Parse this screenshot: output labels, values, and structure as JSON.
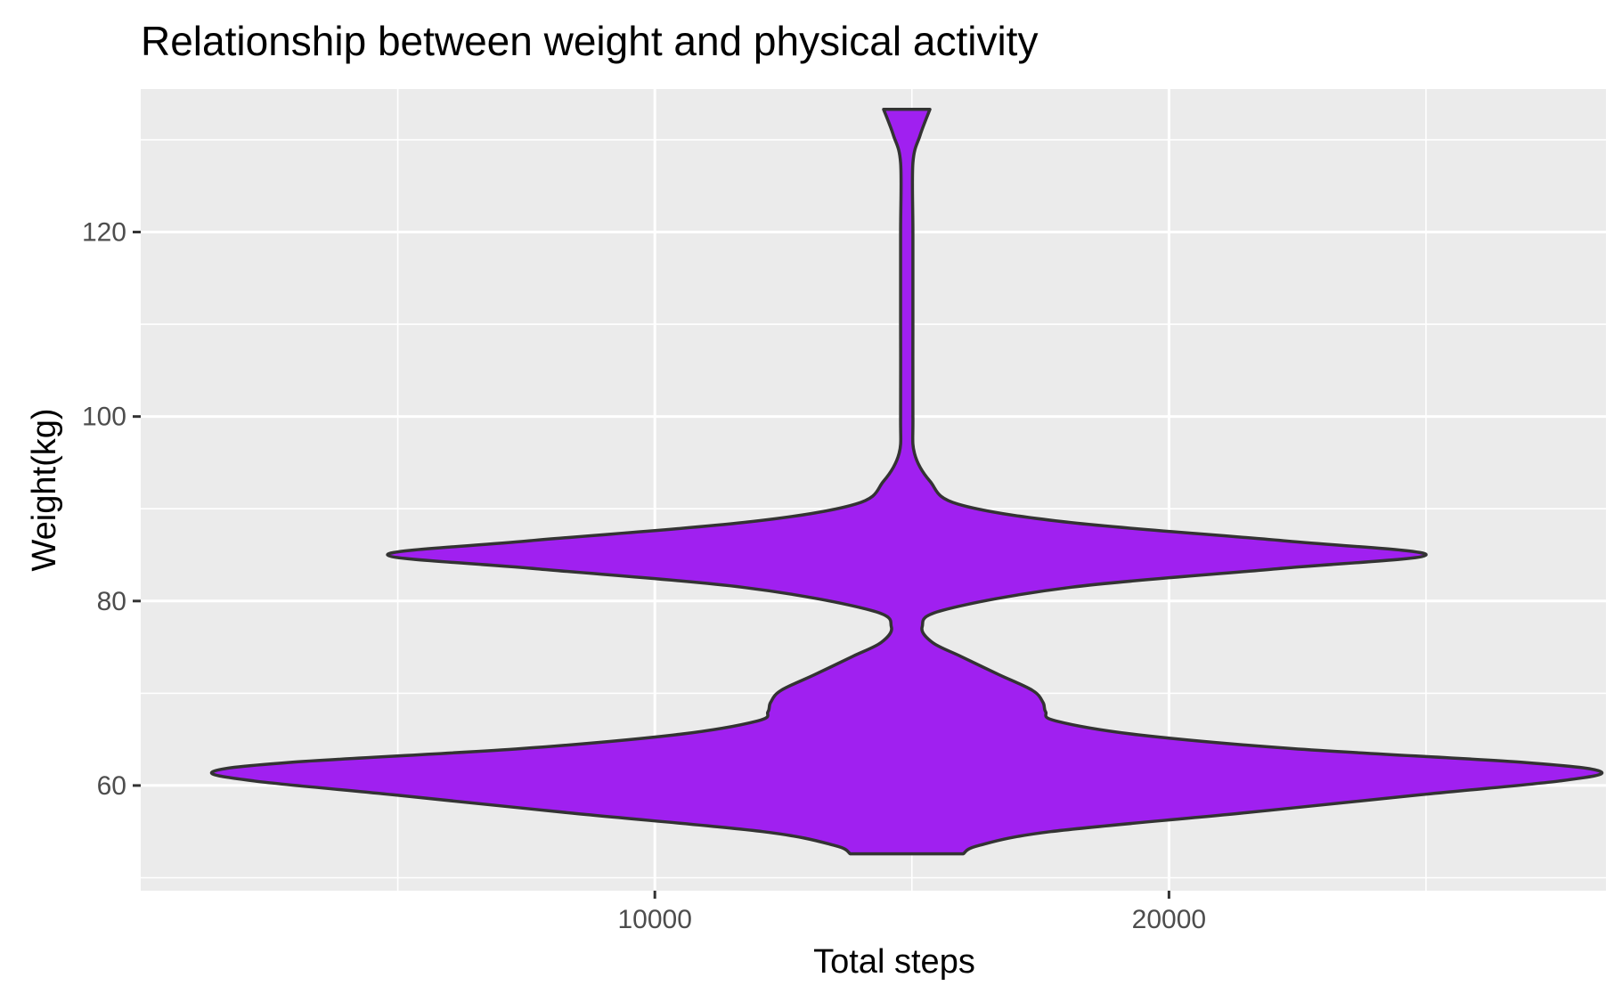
{
  "chart_data": {
    "type": "violin",
    "title": "Relationship between weight and physical activity",
    "xlabel": "Total steps",
    "ylabel": "Weight(kg)",
    "xlim": [
      0,
      28500
    ],
    "ylim": [
      48.6,
      135.5
    ],
    "x_major_ticks": [
      10000,
      20000
    ],
    "x_minor_ticks": [
      5000,
      15000,
      25000
    ],
    "y_major_ticks": [
      60,
      80,
      100,
      120
    ],
    "y_minor_ticks": [
      50,
      70,
      90,
      110,
      130
    ],
    "x_tick_labels": [
      "10000",
      "20000"
    ],
    "y_tick_labels": [
      "60",
      "80",
      "100",
      "120"
    ],
    "grid": true,
    "panel_background": "#ebebeb",
    "grid_color": "#ffffff",
    "fill_color": "#a020f0",
    "outline_color": "#333333",
    "violin_center_x": 14900,
    "violin_profile": [
      {
        "y": 52.6,
        "half_width": 1100
      },
      {
        "y": 53.5,
        "half_width": 1400
      },
      {
        "y": 55.0,
        "half_width": 2800
      },
      {
        "y": 57.0,
        "half_width": 6500
      },
      {
        "y": 59.0,
        "half_width": 10000
      },
      {
        "y": 60.5,
        "half_width": 12700
      },
      {
        "y": 61.5,
        "half_width": 13500
      },
      {
        "y": 62.5,
        "half_width": 12000
      },
      {
        "y": 64.0,
        "half_width": 7500
      },
      {
        "y": 65.5,
        "half_width": 4500
      },
      {
        "y": 67.0,
        "half_width": 2900
      },
      {
        "y": 68.0,
        "half_width": 2700
      },
      {
        "y": 69.0,
        "half_width": 2650
      },
      {
        "y": 70.3,
        "half_width": 2450
      },
      {
        "y": 72.0,
        "half_width": 1800
      },
      {
        "y": 74.0,
        "half_width": 1050
      },
      {
        "y": 75.5,
        "half_width": 500
      },
      {
        "y": 77.2,
        "half_width": 300
      },
      {
        "y": 79.0,
        "half_width": 700
      },
      {
        "y": 81.5,
        "half_width": 3200
      },
      {
        "y": 83.5,
        "half_width": 7200
      },
      {
        "y": 85.0,
        "half_width": 10100
      },
      {
        "y": 86.5,
        "half_width": 7400
      },
      {
        "y": 88.5,
        "half_width": 3200
      },
      {
        "y": 90.5,
        "half_width": 1000
      },
      {
        "y": 93.0,
        "half_width": 450
      },
      {
        "y": 96.0,
        "half_width": 150
      },
      {
        "y": 100.0,
        "half_width": 120
      },
      {
        "y": 110.0,
        "half_width": 120
      },
      {
        "y": 120.0,
        "half_width": 120
      },
      {
        "y": 127.5,
        "half_width": 120
      },
      {
        "y": 130.5,
        "half_width": 260
      },
      {
        "y": 133.3,
        "half_width": 450
      }
    ]
  }
}
